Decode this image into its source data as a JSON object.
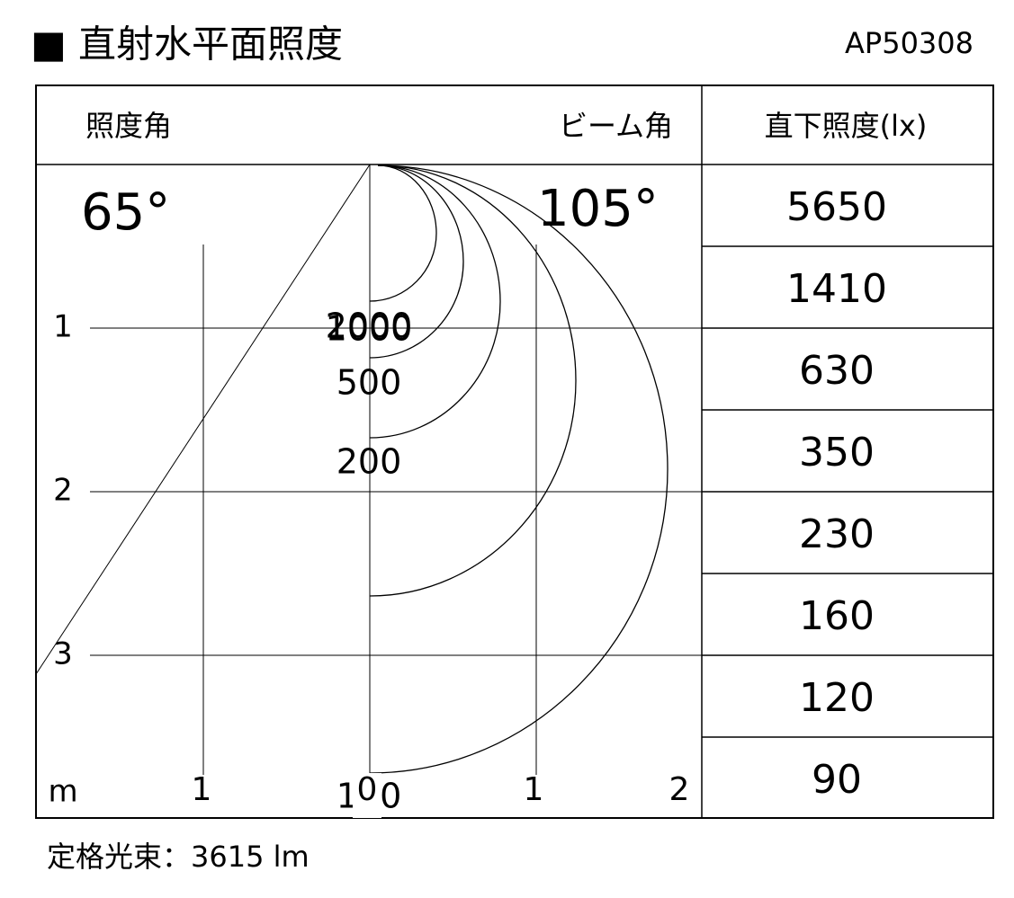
{
  "header": {
    "title": "■ 直射水平面照度",
    "model": "AP50308"
  },
  "table": {
    "head": {
      "illuminance_angle": "照度角",
      "beam_angle": "ビーム角",
      "center_illuminance": "直下照度(lx)"
    },
    "illuminance_angle_value": "65°",
    "beam_angle_value": "105°",
    "rows": [
      "5650",
      "1410",
      "630",
      "350",
      "230",
      "160",
      "120",
      "90"
    ]
  },
  "diagram": {
    "isolux_labels": [
      "2000",
      "1000",
      "500",
      "200",
      "100"
    ],
    "y_axis_labels": [
      "1",
      "2",
      "3"
    ],
    "unit": "m",
    "x_axis_labels": [
      "1",
      "0",
      "1",
      "2"
    ]
  },
  "footer": {
    "luminous_flux": "定格光束：3615 lm"
  }
}
